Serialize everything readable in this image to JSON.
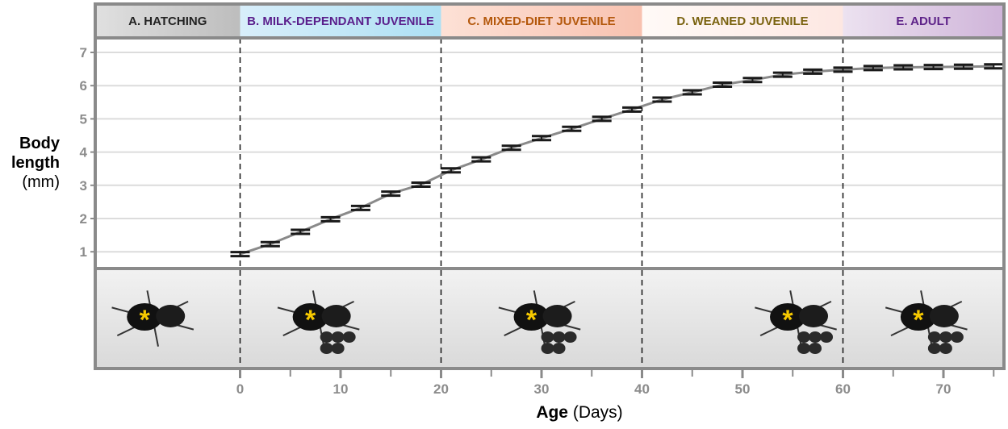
{
  "chart_data": {
    "type": "line",
    "title": "",
    "xlabel_bold": "Age",
    "xlabel_rest": "(Days)",
    "ylabel_lines": [
      "Body",
      "length",
      "(mm)"
    ],
    "xlim": [
      -14.5,
      76
    ],
    "ylim": [
      0.5,
      7.4
    ],
    "x_ticks": [
      0,
      10,
      20,
      30,
      40,
      50,
      60,
      70
    ],
    "x_minor_ticks": [
      5,
      15,
      25,
      35,
      45,
      55,
      65,
      75
    ],
    "y_ticks": [
      1,
      2,
      3,
      4,
      5,
      6,
      7
    ],
    "grid": true,
    "phase_boundaries": [
      0,
      20,
      40,
      60
    ],
    "phases": [
      {
        "label": "A. HATCHING",
        "from": -14.5,
        "to": 0,
        "color": "#222222",
        "bg1": "#e0e0e0",
        "bg2": "#bdbdbd"
      },
      {
        "label": "B. MILK-DEPENDANT JUVENILE",
        "from": 0,
        "to": 20,
        "color": "#5a1f8c",
        "bg1": "#d8eefa",
        "bg2": "#ade0f4"
      },
      {
        "label": "C. MIXED-DIET JUVENILE",
        "from": 20,
        "to": 40,
        "color": "#b4580c",
        "bg1": "#fde1d6",
        "bg2": "#f8c2b0"
      },
      {
        "label": "D. WEANED JUVENILE",
        "from": 40,
        "to": 60,
        "color": "#7a6310",
        "bg1": "#fffaf7",
        "bg2": "#fde7e2"
      },
      {
        "label": "E. ADULT",
        "from": 60,
        "to": 76,
        "color": "#5e2389",
        "bg1": "#ece2f0",
        "bg2": "#cfb4d9"
      }
    ],
    "series": [
      {
        "name": "Body length",
        "x": [
          0,
          3,
          6,
          9,
          12,
          15,
          18,
          21,
          24,
          27,
          30,
          33,
          36,
          39,
          42,
          45,
          48,
          51,
          54,
          57,
          60,
          63,
          66,
          69,
          72,
          75
        ],
        "y": [
          0.93,
          1.23,
          1.6,
          1.98,
          2.32,
          2.75,
          3.02,
          3.45,
          3.78,
          4.13,
          4.42,
          4.7,
          5.0,
          5.28,
          5.58,
          5.8,
          6.03,
          6.17,
          6.33,
          6.42,
          6.48,
          6.53,
          6.55,
          6.56,
          6.57,
          6.58
        ],
        "err": [
          0.02,
          0.02,
          0.02,
          0.02,
          0.02,
          0.02,
          0.04,
          0.03,
          0.03,
          0.03,
          0.04,
          0.04,
          0.05,
          0.05,
          0.05,
          0.05,
          0.05,
          0.06,
          0.06,
          0.06,
          0.06,
          0.06,
          0.06,
          0.06,
          0.06,
          0.06
        ]
      }
    ],
    "photo_markers": [
      -9.5,
      7,
      29,
      54.5,
      67.5
    ],
    "line_color": "#8a8a8a",
    "marker_color": "#1a1a1a",
    "asterisk_color": "#f5c800"
  }
}
